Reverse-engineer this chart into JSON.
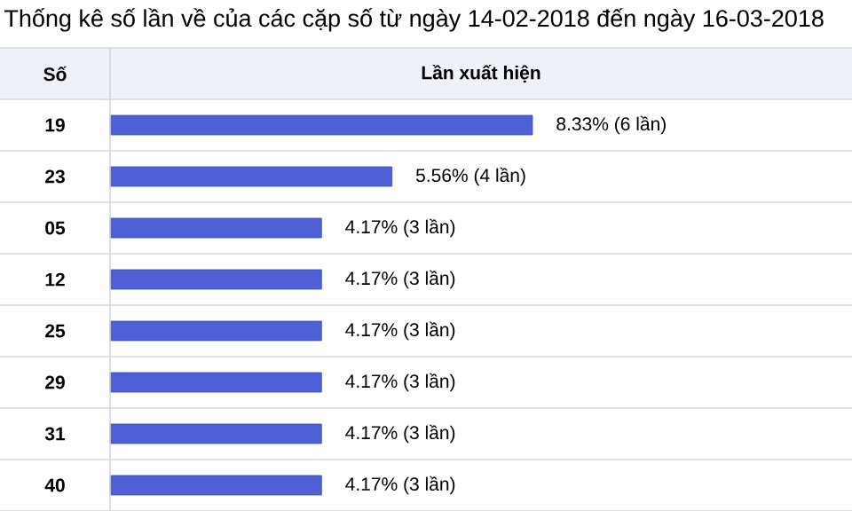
{
  "chart_data": {
    "type": "bar",
    "orientation": "horizontal",
    "title": "Thống kê số lần về của các cặp số từ ngày 14-02-2018 đến ngày 16-03-2018",
    "xlabel": "Lần xuất hiện",
    "ylabel": "Số",
    "categories": [
      "19",
      "23",
      "05",
      "12",
      "25",
      "29",
      "31",
      "40"
    ],
    "values": [
      8.33,
      5.56,
      4.17,
      4.17,
      4.17,
      4.17,
      4.17,
      4.17
    ],
    "value_labels": [
      "8.33% (6 lần)",
      "5.56% (4 lần)",
      "4.17% (3 lần)",
      "4.17% (3 lần)",
      "4.17% (3 lần)",
      "4.17% (3 lần)",
      "4.17% (3 lần)",
      "4.17% (3 lần)"
    ],
    "color": "#4f5fd6"
  }
}
